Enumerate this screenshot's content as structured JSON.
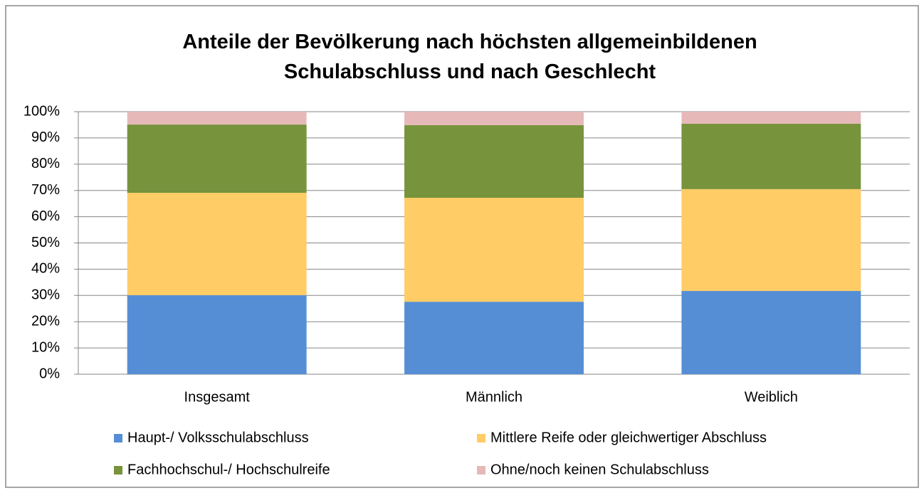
{
  "chart_data": {
    "type": "stacked_bar",
    "title": "Anteile der Bevölkerung nach höchsten allgemeinbildenen Schulabschluss und nach Geschlecht",
    "categories": [
      "Insgesamt",
      "Männlich",
      "Weiblich"
    ],
    "series": [
      {
        "name": "Haupt-/ Volksschulabschluss",
        "color": "#558ed5",
        "values": [
          30.1,
          27.6,
          31.7
        ]
      },
      {
        "name": "Mittlere Reife oder gleichwertiger Abschluss",
        "color": "#ffcc66",
        "values": [
          39.0,
          39.6,
          38.8
        ]
      },
      {
        "name": "Fachhochschul-/ Hochschulreife",
        "color": "#77933c",
        "values": [
          26.0,
          27.7,
          24.9
        ]
      },
      {
        "name": "Ohne/noch keinen Schulabschluss",
        "color": "#e6b9b8",
        "values": [
          4.9,
          5.1,
          4.6
        ]
      }
    ],
    "ylim": [
      0,
      100
    ],
    "yticks": [
      {
        "value": 0,
        "label": "0%"
      },
      {
        "value": 10,
        "label": "10%"
      },
      {
        "value": 20,
        "label": "20%"
      },
      {
        "value": 30,
        "label": "30%"
      },
      {
        "value": 40,
        "label": "40%"
      },
      {
        "value": 50,
        "label": "50%"
      },
      {
        "value": 60,
        "label": "60%"
      },
      {
        "value": 70,
        "label": "70%"
      },
      {
        "value": 80,
        "label": "80%"
      },
      {
        "value": 90,
        "label": "90%"
      },
      {
        "value": 100,
        "label": "100%"
      }
    ],
    "grid": true,
    "legend": "bottom"
  }
}
